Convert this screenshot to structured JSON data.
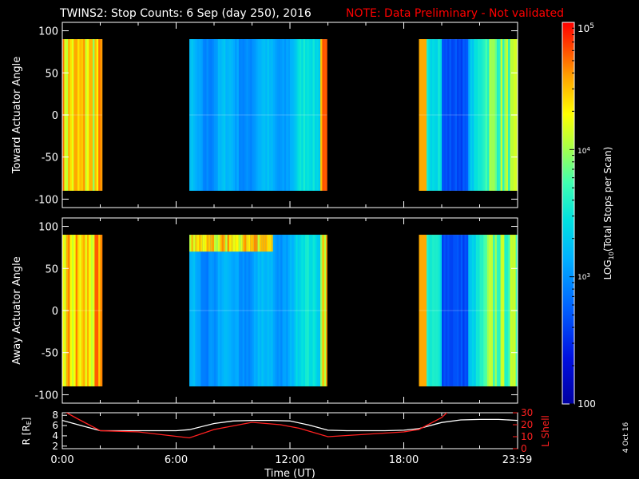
{
  "header": {
    "title": "TWINS2: Stop Counts:  6 Sep (day 250), 2016",
    "note": "NOTE: Data Preliminary - Not validated"
  },
  "footer": {
    "date_stamp": "4 Oct 16"
  },
  "colors": {
    "background": "#000000",
    "axis": "#ffffff",
    "note": "#ff0000",
    "r_line": "#ffffff",
    "lshell_line": "#ff2020"
  },
  "chart_data": [
    {
      "type": "heatmap",
      "name": "toward-panel",
      "ylabel": "Toward Actuator Angle",
      "ylim": [
        -110,
        110
      ],
      "yticks": [
        100,
        50,
        0,
        -50,
        -100
      ],
      "y_extent": [
        -90,
        90
      ],
      "x_range_hours": [
        0,
        24
      ],
      "data_intervals_hours": [
        [
          0.0,
          2.1
        ],
        [
          6.7,
          13.95
        ],
        [
          18.8,
          24.0
        ]
      ],
      "colorscale": "log",
      "clim": [
        100,
        100000
      ]
    },
    {
      "type": "heatmap",
      "name": "away-panel",
      "ylabel": "Away Actuator Angle",
      "ylim": [
        -110,
        110
      ],
      "yticks": [
        100,
        50,
        0,
        -50,
        -100
      ],
      "y_extent": [
        -90,
        90
      ],
      "x_range_hours": [
        0,
        24
      ],
      "data_intervals_hours": [
        [
          0.0,
          2.1
        ],
        [
          6.7,
          13.95
        ],
        [
          18.8,
          24.0
        ]
      ],
      "colorscale": "log",
      "clim": [
        100,
        100000
      ]
    },
    {
      "type": "line",
      "name": "ephemeris",
      "xlabel": "Time (UT)",
      "xticks": [
        "0:00",
        "6:00",
        "12:00",
        "18:00",
        "23:59"
      ],
      "xtick_hours": [
        0,
        6,
        12,
        18,
        23.98
      ],
      "ylabel_left": "R [R",
      "ylabel_left_sub": "E",
      "ylabel_left_close": "]",
      "ylim_left": [
        1.5,
        8.5
      ],
      "yticks_left": [
        "8",
        "6",
        "4",
        "2"
      ],
      "ytick_left_values": [
        8,
        6,
        4,
        2
      ],
      "ylabel_right": "L Shell",
      "ylim_right": [
        0,
        30
      ],
      "yticks_right": [
        "30",
        "20",
        "10",
        "0"
      ],
      "ytick_right_values": [
        30,
        20,
        10,
        0
      ],
      "series": [
        {
          "axis": "left",
          "x": [
            0,
            1,
            2,
            3,
            4,
            5,
            6,
            6.7,
            8,
            9,
            10,
            11,
            12,
            13,
            14,
            15,
            16,
            17,
            18,
            18.8,
            20,
            21,
            22,
            23,
            24
          ],
          "values": [
            7.0,
            6.0,
            5.0,
            5.0,
            5.0,
            5.0,
            5.0,
            5.2,
            6.4,
            6.9,
            7.0,
            7.0,
            6.9,
            6.1,
            5.1,
            5.0,
            5.0,
            5.0,
            5.1,
            5.4,
            6.6,
            7.1,
            7.2,
            7.2,
            7.0
          ]
        },
        {
          "axis": "right",
          "x": [
            0.0,
            0.8,
            2.0,
            4.0,
            6.7,
            8.0,
            10.0,
            11.5,
            12.5,
            14.0,
            16.0,
            18.0,
            18.8,
            20.0,
            20.4
          ],
          "values": [
            32,
            25,
            15,
            14,
            9,
            16,
            22,
            20,
            17,
            10,
            12,
            14,
            16,
            26,
            32
          ]
        }
      ]
    }
  ],
  "colorbar": {
    "label": "LOG",
    "label_sub": "10",
    "label_rest": "(Total Stops per Scan)",
    "scale": "log",
    "range": [
      100,
      100000
    ],
    "tick_values": [
      100000,
      10000,
      1000,
      100
    ],
    "top_base": "10",
    "top_exp": "5",
    "mid1_base": "10",
    "mid1_exp": "4",
    "mid2_base": "10",
    "mid2_exp": "3",
    "bottom": "100"
  }
}
